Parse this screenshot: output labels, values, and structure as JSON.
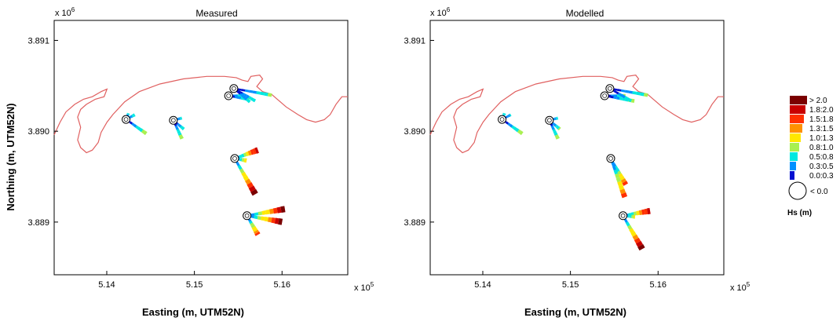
{
  "chart_data": [
    {
      "type": "scatter",
      "title": "Measured",
      "xlabel": "Easting (m, UTM52N)",
      "ylabel": "Northing (m, UTM52N)",
      "x_multiplier": "x 10^5",
      "y_multiplier": "x 10^6",
      "xlim": [
        5.134,
        5.1675
      ],
      "ylim": [
        3.88842,
        3.89122
      ],
      "xticks": [
        5.14,
        5.15,
        5.16
      ],
      "yticks": [
        3.889,
        3.89,
        3.891
      ],
      "stations": [
        {
          "x": 5.1422,
          "y": 3.89013,
          "arrows": [
            {
              "length": 0.12,
              "angle": 22,
              "hs": 0.6
            },
            {
              "length": 0.18,
              "angle": 62,
              "hs": 0.7
            },
            {
              "length": 0.45,
              "angle": 125,
              "hs": 0.9
            }
          ]
        },
        {
          "x": 5.1476,
          "y": 3.89012,
          "arrows": [
            {
              "length": 0.16,
              "angle": 75,
              "hs": 0.6
            },
            {
              "length": 0.25,
              "angle": 130,
              "hs": 0.7
            },
            {
              "length": 0.37,
              "angle": 155,
              "hs": 0.9
            }
          ]
        },
        {
          "x": 5.1539,
          "y": 3.89039,
          "arrows": [
            {
              "length": 0.28,
              "angle": 90,
              "hs": 0.8
            },
            {
              "length": 0.38,
              "angle": 100,
              "hs": 0.8
            }
          ]
        },
        {
          "x": 5.1545,
          "y": 3.89047,
          "arrows": [
            {
              "length": 0.7,
              "angle": 100,
              "hs": 0.8
            },
            {
              "length": 0.45,
              "angle": 120,
              "hs": 0.7
            },
            {
              "length": 0.38,
              "angle": 130,
              "hs": 0.6
            }
          ]
        },
        {
          "x": 5.1546,
          "y": 3.8897,
          "arrows": [
            {
              "length": 0.45,
              "angle": 70,
              "hs": 1.9
            },
            {
              "length": 0.75,
              "angle": 150,
              "hs": 2.1
            },
            {
              "length": 0.22,
              "angle": 100,
              "hs": 1.2
            }
          ]
        },
        {
          "x": 5.156,
          "y": 3.88907,
          "arrows": [
            {
              "length": 0.7,
              "angle": 80,
              "hs": 2.1
            },
            {
              "length": 0.65,
              "angle": 100,
              "hs": 2.0
            },
            {
              "length": 0.4,
              "angle": 150,
              "hs": 1.6
            }
          ]
        }
      ]
    },
    {
      "type": "scatter",
      "title": "Modelled",
      "xlabel": "Easting (m, UTM52N)",
      "ylabel": "",
      "x_multiplier": "x 10^5",
      "y_multiplier": "x 10^6",
      "xlim": [
        5.134,
        5.1675
      ],
      "ylim": [
        3.88842,
        3.89122
      ],
      "xticks": [
        5.14,
        5.15,
        5.16
      ],
      "yticks": [
        3.889,
        3.89,
        3.891
      ],
      "stations": [
        {
          "x": 5.1422,
          "y": 3.89013,
          "arrows": [
            {
              "length": 0.12,
              "angle": 22,
              "hs": 0.7
            },
            {
              "length": 0.18,
              "angle": 62,
              "hs": 0.5
            },
            {
              "length": 0.45,
              "angle": 125,
              "hs": 0.9
            }
          ]
        },
        {
          "x": 5.1476,
          "y": 3.89012,
          "arrows": [
            {
              "length": 0.16,
              "angle": 75,
              "hs": 0.6
            },
            {
              "length": 0.25,
              "angle": 130,
              "hs": 0.8
            },
            {
              "length": 0.37,
              "angle": 155,
              "hs": 0.9
            }
          ]
        },
        {
          "x": 5.1539,
          "y": 3.89039,
          "arrows": [
            {
              "length": 0.38,
              "angle": 90,
              "hs": 0.8
            },
            {
              "length": 0.55,
              "angle": 100,
              "hs": 0.9
            }
          ]
        },
        {
          "x": 5.1545,
          "y": 3.89047,
          "arrows": [
            {
              "length": 0.7,
              "angle": 100,
              "hs": 0.8
            },
            {
              "length": 0.45,
              "angle": 120,
              "hs": 0.7
            }
          ]
        },
        {
          "x": 5.1546,
          "y": 3.8897,
          "arrows": [
            {
              "length": 0.55,
              "angle": 150,
              "hs": 1.5
            },
            {
              "length": 0.75,
              "angle": 160,
              "hs": 1.6
            }
          ]
        },
        {
          "x": 5.156,
          "y": 3.88907,
          "arrows": [
            {
              "length": 0.5,
              "angle": 80,
              "hs": 1.9
            },
            {
              "length": 0.7,
              "angle": 150,
              "hs": 2.0
            },
            {
              "length": 0.22,
              "angle": 95,
              "hs": 1.0
            }
          ]
        }
      ]
    }
  ],
  "legend": {
    "title": "Hs (m)",
    "bins": [
      {
        "label": "> 2.0",
        "color": "#7a0000"
      },
      {
        "label": "1.8:2.0",
        "color": "#c80000"
      },
      {
        "label": "1.5:1.8",
        "color": "#ff3000"
      },
      {
        "label": "1.3:1.5",
        "color": "#ff9000"
      },
      {
        "label": "1.0:1.3",
        "color": "#ffe800"
      },
      {
        "label": "0.8:1.0",
        "color": "#a8f050"
      },
      {
        "label": "0.5:0.8",
        "color": "#00e8e0"
      },
      {
        "label": "0.3:0.5",
        "color": "#0090ff"
      },
      {
        "label": "0.0:0.3",
        "color": "#0010d0"
      }
    ],
    "calm_label": "< 0.0"
  },
  "coastline_color": "#e06060"
}
